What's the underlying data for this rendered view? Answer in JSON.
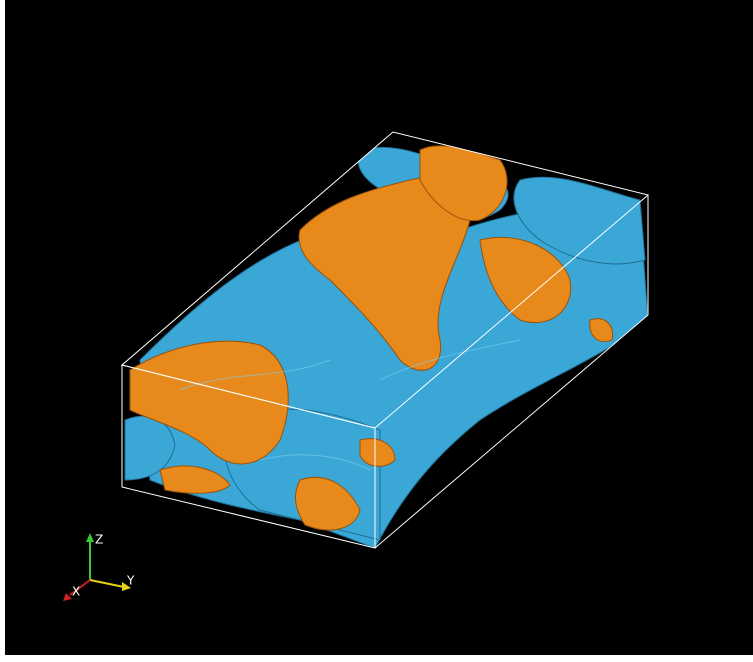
{
  "axes": {
    "z_label": "Z",
    "y_label": "Y",
    "x_label": "X"
  }
}
